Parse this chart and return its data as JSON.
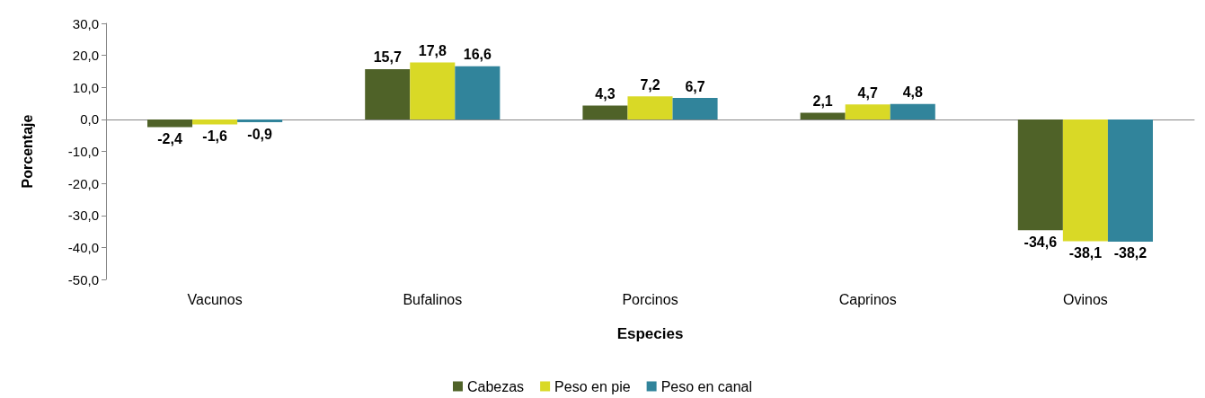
{
  "chart_data": {
    "type": "bar",
    "xlabel": "Especies",
    "ylabel": "Porcentaje",
    "categories": [
      "Vacunos",
      "Bufalinos",
      "Porcinos",
      "Caprinos",
      "Ovinos"
    ],
    "series": [
      {
        "name": "Cabezas",
        "color": "#4f6228",
        "values": [
          -2.4,
          15.7,
          4.3,
          2.1,
          -34.6
        ],
        "value_labels": [
          "-2,4",
          "15,7",
          "4,3",
          "2,1",
          "-34,6"
        ]
      },
      {
        "name": "Peso en pie",
        "color": "#d9d926",
        "values": [
          -1.6,
          17.8,
          7.2,
          4.7,
          -38.1
        ],
        "value_labels": [
          "-1,6",
          "17,8",
          "7,2",
          "4,7",
          "-38,1"
        ]
      },
      {
        "name": "Peso en canal",
        "color": "#31849b",
        "values": [
          -0.9,
          16.6,
          6.7,
          4.8,
          -38.2
        ],
        "value_labels": [
          "-0,9",
          "16,6",
          "6,7",
          "4,8",
          "-38,2"
        ]
      }
    ],
    "ylim": [
      -50,
      30
    ],
    "yticks": [
      {
        "value": -50,
        "label": "-50,0"
      },
      {
        "value": -40,
        "label": "-40,0"
      },
      {
        "value": -30,
        "label": "-30,0"
      },
      {
        "value": -20,
        "label": "-20,0"
      },
      {
        "value": -10,
        "label": "-10,0"
      },
      {
        "value": 0,
        "label": "0,0"
      },
      {
        "value": 10,
        "label": "10,0"
      },
      {
        "value": 20,
        "label": "20,0"
      },
      {
        "value": 30,
        "label": "30,0"
      }
    ],
    "legend": "bottom"
  }
}
